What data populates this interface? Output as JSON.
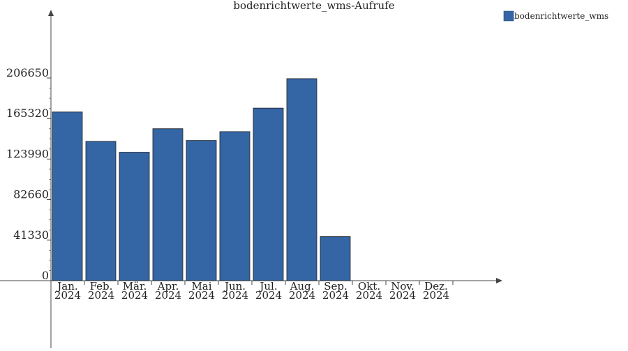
{
  "chart_data": {
    "type": "bar",
    "title": "bodenrichtwerte_wms-Aufrufe",
    "xlabel": "",
    "ylabel": "",
    "categories": [
      [
        "Jan.",
        "2024"
      ],
      [
        "Feb.",
        "2024"
      ],
      [
        "Mär.",
        "2024"
      ],
      [
        "Apr.",
        "2024"
      ],
      [
        "Mai",
        "2024"
      ],
      [
        "Jun.",
        "2024"
      ],
      [
        "Jul.",
        "2024"
      ],
      [
        "Aug.",
        "2024"
      ],
      [
        "Sep.",
        "2024"
      ],
      [
        "Okt.",
        "2024"
      ],
      [
        "Nov.",
        "2024"
      ],
      [
        "Dez.",
        "2024"
      ]
    ],
    "series": [
      {
        "name": "bodenrichtwerte_wms",
        "color": "#3465a4",
        "values": [
          172000,
          142000,
          131000,
          155000,
          143000,
          152000,
          176000,
          206000,
          45000,
          0,
          0,
          0
        ]
      }
    ],
    "yticks": [
      0,
      41330,
      82660,
      123990,
      165320,
      206650
    ],
    "ylim": [
      0,
      270000
    ],
    "legend_position": "top-right",
    "grid": false
  }
}
